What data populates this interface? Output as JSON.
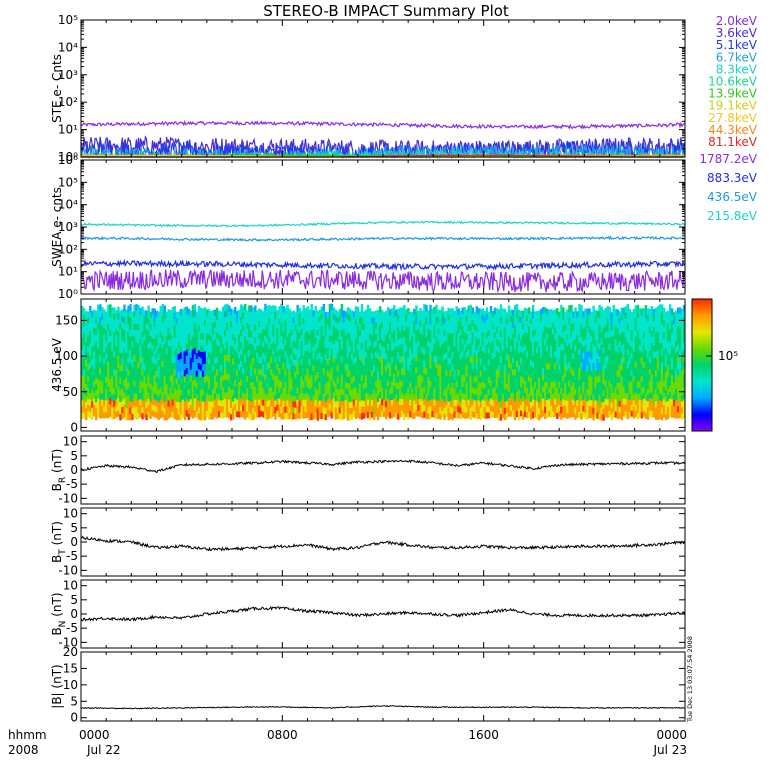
{
  "chart_data": {
    "title": "STEREO-B IMPACT Summary Plot",
    "type": "line",
    "time_axis": {
      "label_top": "hhmm",
      "label_bottom": "2008",
      "ticks": [
        {
          "t": 0,
          "top": "0000",
          "bottom": "Jul 22"
        },
        {
          "t": 8,
          "top": "0800",
          "bottom": ""
        },
        {
          "t": 16,
          "top": "1600",
          "bottom": ""
        },
        {
          "t": 24,
          "top": "0000",
          "bottom": "Jul 23"
        }
      ],
      "range_hours": [
        0,
        24
      ]
    },
    "timestamp": "Tue Dec 13 03:07:54 2008",
    "panels": [
      {
        "id": "ste",
        "ylabel": "STE e- Cnts",
        "scale": "log",
        "ylim": [
          1,
          100000
        ],
        "yticks": [
          {
            "v": 1,
            "l": "10⁰"
          },
          {
            "v": 10,
            "l": "10¹"
          },
          {
            "v": 100,
            "l": "10²"
          },
          {
            "v": 1000,
            "l": "10³"
          },
          {
            "v": 10000,
            "l": "10⁴"
          },
          {
            "v": 100000,
            "l": "10⁵"
          }
        ],
        "series": [
          {
            "name": "2.0keV",
            "color": "#8a2be2",
            "level": 15,
            "noise": 0.06
          },
          {
            "name": "3.6keV",
            "color": "#4b2bd6",
            "level": 2.2,
            "noise": 0.35
          },
          {
            "name": "5.1keV",
            "color": "#1f3ee6",
            "level": 1.6,
            "noise": 0.35
          },
          {
            "name": "6.7keV",
            "color": "#1aa6e6",
            "level": 1.2,
            "noise": 0.3
          },
          {
            "name": "8.3keV",
            "color": "#19d4c8",
            "level": 1.0,
            "noise": 0.2
          },
          {
            "name": "10.6keV",
            "color": "#17d98a",
            "level": 1.0,
            "noise": 0.0
          },
          {
            "name": "13.9keV",
            "color": "#2ecc1a",
            "level": 1.0,
            "noise": 0.0
          },
          {
            "name": "19.1keV",
            "color": "#c8d21a",
            "level": 1.0,
            "noise": 0.0
          },
          {
            "name": "27.8keV",
            "color": "#f0c81a",
            "level": 1.0,
            "noise": 0.0
          },
          {
            "name": "44.3keV",
            "color": "#f08a1a",
            "level": 1.0,
            "noise": 0.0
          },
          {
            "name": "81.1keV",
            "color": "#e02a1a",
            "level": 1.0,
            "noise": 0.0
          }
        ]
      },
      {
        "id": "swea",
        "ylabel": "SWEA e- cnts",
        "scale": "log",
        "ylim": [
          1,
          1000000
        ],
        "yticks": [
          {
            "v": 1,
            "l": "10⁰"
          },
          {
            "v": 10,
            "l": "10¹"
          },
          {
            "v": 100,
            "l": "10²"
          },
          {
            "v": 1000,
            "l": "10³"
          },
          {
            "v": 10000,
            "l": "10⁴"
          },
          {
            "v": 100000,
            "l": "10⁵"
          },
          {
            "v": 1000000,
            "l": "10⁶"
          }
        ],
        "series": [
          {
            "name": "1787.2eV",
            "color": "#8a2be2",
            "level": 4,
            "noise": 0.45
          },
          {
            "name": "883.3eV",
            "color": "#1f2ee6",
            "level": 20,
            "noise": 0.12
          },
          {
            "name": "436.5eV",
            "color": "#1a9ae6",
            "level": 280,
            "noise": 0.05
          },
          {
            "name": "215.8eV",
            "color": "#19d4c8",
            "level": 1300,
            "noise": 0.04
          }
        ]
      },
      {
        "id": "pad",
        "ylabel": "436.5 eV",
        "scale": "linear",
        "ylim": [
          -5,
          180
        ],
        "yticks": [
          {
            "v": 0,
            "l": "0"
          },
          {
            "v": 50,
            "l": "50"
          },
          {
            "v": 100,
            "l": "100"
          },
          {
            "v": 150,
            "l": "150"
          }
        ],
        "colorbar": {
          "label": "10⁵",
          "colors": [
            "#8b00ff",
            "#0000ff",
            "#00aaff",
            "#00e5cc",
            "#00d26a",
            "#6cd900",
            "#e6e600",
            "#ff9900",
            "#ff2a00"
          ]
        }
      },
      {
        "id": "br",
        "ylabel": "B",
        "sub": "R",
        "unit": "(nT)",
        "scale": "linear",
        "ylim": [
          -12,
          12
        ],
        "yticks": [
          {
            "v": -10,
            "l": "-10"
          },
          {
            "v": -5,
            "l": "-5"
          },
          {
            "v": 0,
            "l": "0"
          },
          {
            "v": 5,
            "l": "5"
          },
          {
            "v": 10,
            "l": "10"
          }
        ],
        "trace": {
          "t": [
            0,
            1,
            2,
            3,
            4,
            5,
            6,
            7,
            8,
            9,
            10,
            11,
            12,
            13,
            14,
            15,
            16,
            17,
            18,
            19,
            20,
            21,
            22,
            23,
            24
          ],
          "v": [
            0,
            1.5,
            1.0,
            -0.5,
            1.8,
            2.0,
            2.2,
            2.5,
            3.0,
            2.5,
            2.0,
            2.8,
            3.0,
            3.2,
            2.5,
            1.5,
            2.5,
            1.5,
            0.5,
            1.8,
            2.0,
            2.2,
            2.3,
            2.5,
            2.4
          ],
          "noise": 0.8
        }
      },
      {
        "id": "bt",
        "ylabel": "B",
        "sub": "T",
        "unit": "(nT)",
        "scale": "linear",
        "ylim": [
          -12,
          12
        ],
        "yticks": [
          {
            "v": -10,
            "l": "-10"
          },
          {
            "v": -5,
            "l": "-5"
          },
          {
            "v": 0,
            "l": "0"
          },
          {
            "v": 5,
            "l": "5"
          },
          {
            "v": 10,
            "l": "10"
          }
        ],
        "trace": {
          "t": [
            0,
            1,
            2,
            3,
            4,
            5,
            6,
            7,
            8,
            9,
            10,
            11,
            12,
            13,
            14,
            15,
            16,
            17,
            18,
            19,
            20,
            21,
            22,
            23,
            24
          ],
          "v": [
            1.5,
            0.5,
            0.0,
            -2.0,
            -1.5,
            -2.5,
            -2.5,
            -2.0,
            -1.5,
            -1.0,
            -2.5,
            -2.0,
            0.0,
            -1.0,
            -2.0,
            -2.0,
            -1.5,
            -2.0,
            -2.0,
            -1.8,
            -1.5,
            -1.5,
            -1.2,
            -0.8,
            0.0
          ],
          "noise": 1.0
        }
      },
      {
        "id": "bn",
        "ylabel": "B",
        "sub": "N",
        "unit": "(nT)",
        "scale": "linear",
        "ylim": [
          -12,
          12
        ],
        "yticks": [
          {
            "v": -10,
            "l": "-10"
          },
          {
            "v": -5,
            "l": "-5"
          },
          {
            "v": 0,
            "l": "0"
          },
          {
            "v": 5,
            "l": "5"
          },
          {
            "v": 10,
            "l": "10"
          }
        ],
        "trace": {
          "t": [
            0,
            1,
            2,
            3,
            4,
            5,
            6,
            7,
            8,
            9,
            10,
            11,
            12,
            13,
            14,
            15,
            16,
            17,
            18,
            19,
            20,
            21,
            22,
            23,
            24
          ],
          "v": [
            -2.0,
            -1.5,
            -2.0,
            -1.0,
            -1.5,
            0.0,
            1.0,
            2.0,
            2.0,
            1.0,
            0.5,
            -0.5,
            0.0,
            0.5,
            0.0,
            -0.5,
            0.5,
            1.5,
            0.0,
            -0.5,
            -0.5,
            -0.5,
            -0.5,
            -0.3,
            0.5
          ],
          "noise": 1.0
        }
      },
      {
        "id": "bmag",
        "ylabel": "|B|",
        "sub": "",
        "unit": "(nT)",
        "scale": "linear",
        "ylim": [
          -1,
          20
        ],
        "yticks": [
          {
            "v": 0,
            "l": "0"
          },
          {
            "v": 5,
            "l": "5"
          },
          {
            "v": 10,
            "l": "10"
          },
          {
            "v": 15,
            "l": "15"
          },
          {
            "v": 20,
            "l": "20"
          }
        ],
        "trace": {
          "t": [
            0,
            2,
            4,
            6,
            8,
            10,
            12,
            14,
            16,
            18,
            20,
            22,
            24
          ],
          "v": [
            3.0,
            2.8,
            3.0,
            3.2,
            3.3,
            3.0,
            3.6,
            3.2,
            3.2,
            3.2,
            3.0,
            3.0,
            3.0
          ],
          "noise": 0.3
        }
      }
    ]
  }
}
